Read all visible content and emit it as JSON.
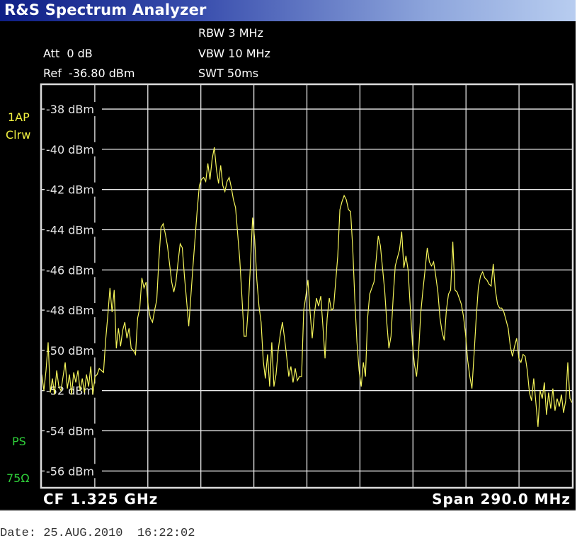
{
  "window": {
    "title": "R&S Spectrum Analyzer"
  },
  "settings": {
    "att": "Att  0 dB",
    "ref": "Ref  -36.80 dBm",
    "rbw": "RBW 3 MHz",
    "vbw": "VBW 10 MHz",
    "swt": "SWT 50ms"
  },
  "side_labels": {
    "trace_mode": "1AP",
    "detector": "Clrw",
    "ps": "PS",
    "impedance": "75Ω"
  },
  "footer": {
    "center_freq": "CF 1.325 GHz",
    "span": "Span 290.0 MHz"
  },
  "date_line": "Date: 25.AUG.2010  16:22:02",
  "colors": {
    "trace": "#f5f55a",
    "grid": "#e8e8e8",
    "background": "#000000",
    "title_bar": "#1a2a8a",
    "status_green": "#2fd03a",
    "status_yellow": "#f0f040"
  },
  "chart_data": {
    "type": "line",
    "title": "",
    "xlabel": "",
    "ylabel": "",
    "x_range_mhz": [
      1180,
      1470
    ],
    "ylim": [
      -56.8,
      -36.8
    ],
    "grid": true,
    "x_divisions": 10,
    "y_tick_labels": [
      "-38 dBm",
      "-40 dBm",
      "-42 dBm",
      "-44 dBm",
      "-46 dBm",
      "-48 dBm",
      "-50 dBm",
      "-52 dBm",
      "-54 dBm",
      "-56 dBm"
    ],
    "y_ticks": [
      -38,
      -40,
      -42,
      -44,
      -46,
      -48,
      -50,
      -52,
      -54,
      -56
    ],
    "series": [
      {
        "sampling": "evenly spaced across x_range_mhz",
        "values": [
          -51.2,
          -52.0,
          -51.0,
          -49.6,
          -52.1,
          -51.4,
          -52.2,
          -51.0,
          -51.8,
          -52.0,
          -51.3,
          -50.6,
          -51.9,
          -51.2,
          -52.2,
          -51.1,
          -51.6,
          -51.0,
          -52.0,
          -51.4,
          -52.1,
          -51.2,
          -51.8,
          -50.8,
          -52.2,
          -51.3,
          -51.2,
          -50.9,
          -51.0,
          -51.1,
          -49.5,
          -48.3,
          -46.9,
          -48.1,
          -47.0,
          -49.9,
          -48.9,
          -49.8,
          -49.0,
          -48.6,
          -49.4,
          -48.9,
          -49.9,
          -50.0,
          -50.2,
          -48.4,
          -47.9,
          -46.4,
          -46.9,
          -46.6,
          -47.8,
          -48.4,
          -48.6,
          -48.0,
          -47.5,
          -45.5,
          -43.9,
          -43.7,
          -44.2,
          -44.8,
          -45.7,
          -46.6,
          -47.1,
          -46.6,
          -45.6,
          -44.7,
          -44.9,
          -46.3,
          -47.5,
          -48.8,
          -47.3,
          -45.8,
          -44.4,
          -43.0,
          -41.8,
          -41.5,
          -41.4,
          -41.6,
          -40.7,
          -41.5,
          -40.5,
          -39.9,
          -41.0,
          -41.7,
          -40.8,
          -41.8,
          -42.1,
          -41.6,
          -41.4,
          -41.9,
          -42.5,
          -42.9,
          -44.2,
          -45.5,
          -47.4,
          -49.3,
          -49.3,
          -47.8,
          -45.7,
          -43.4,
          -44.5,
          -46.5,
          -47.8,
          -48.6,
          -50.5,
          -51.4,
          -50.2,
          -51.8,
          -49.6,
          -51.8,
          -51.2,
          -50.0,
          -49.2,
          -48.6,
          -49.4,
          -50.3,
          -51.3,
          -50.8,
          -51.6,
          -50.9,
          -51.5,
          -51.3,
          -51.3,
          -48.0,
          -47.3,
          -46.5,
          -48.1,
          -49.4,
          -48.2,
          -47.4,
          -47.8,
          -47.3,
          -48.8,
          -50.4,
          -48.4,
          -47.4,
          -48.0,
          -47.9,
          -46.6,
          -45.3,
          -43.0,
          -42.6,
          -42.3,
          -42.5,
          -43.0,
          -43.1,
          -44.9,
          -47.5,
          -49.6,
          -51.0,
          -51.8,
          -50.6,
          -51.3,
          -48.4,
          -47.2,
          -46.9,
          -46.6,
          -45.5,
          -44.3,
          -44.8,
          -45.9,
          -47.0,
          -48.6,
          -49.9,
          -49.3,
          -47.4,
          -45.8,
          -45.4,
          -45.0,
          -44.1,
          -45.9,
          -45.3,
          -46.0,
          -47.8,
          -49.6,
          -50.7,
          -51.3,
          -50.0,
          -48.1,
          -47.0,
          -46.0,
          -44.9,
          -45.6,
          -45.8,
          -45.6,
          -46.3,
          -47.1,
          -48.4,
          -49.1,
          -49.5,
          -48.0,
          -47.2,
          -47.0,
          -44.6,
          -47.0,
          -47.1,
          -47.4,
          -47.7,
          -48.3,
          -49.2,
          -50.5,
          -51.3,
          -51.9,
          -50.2,
          -48.4,
          -46.9,
          -46.3,
          -46.1,
          -46.4,
          -46.5,
          -46.7,
          -46.8,
          -45.7,
          -47.0,
          -47.7,
          -47.9,
          -47.9,
          -48.1,
          -48.5,
          -48.9,
          -49.8,
          -50.3,
          -49.8,
          -49.4,
          -50.4,
          -50.6,
          -50.2,
          -50.3,
          -51.0,
          -52.1,
          -52.5,
          -51.4,
          -52.6,
          -53.8,
          -52.0,
          -52.4,
          -51.6,
          -53.2,
          -52.1,
          -52.9,
          -51.9,
          -53.0,
          -52.4,
          -52.8,
          -52.2,
          -53.1,
          -52.5,
          -50.6,
          -52.4,
          -52.6
        ]
      }
    ]
  }
}
